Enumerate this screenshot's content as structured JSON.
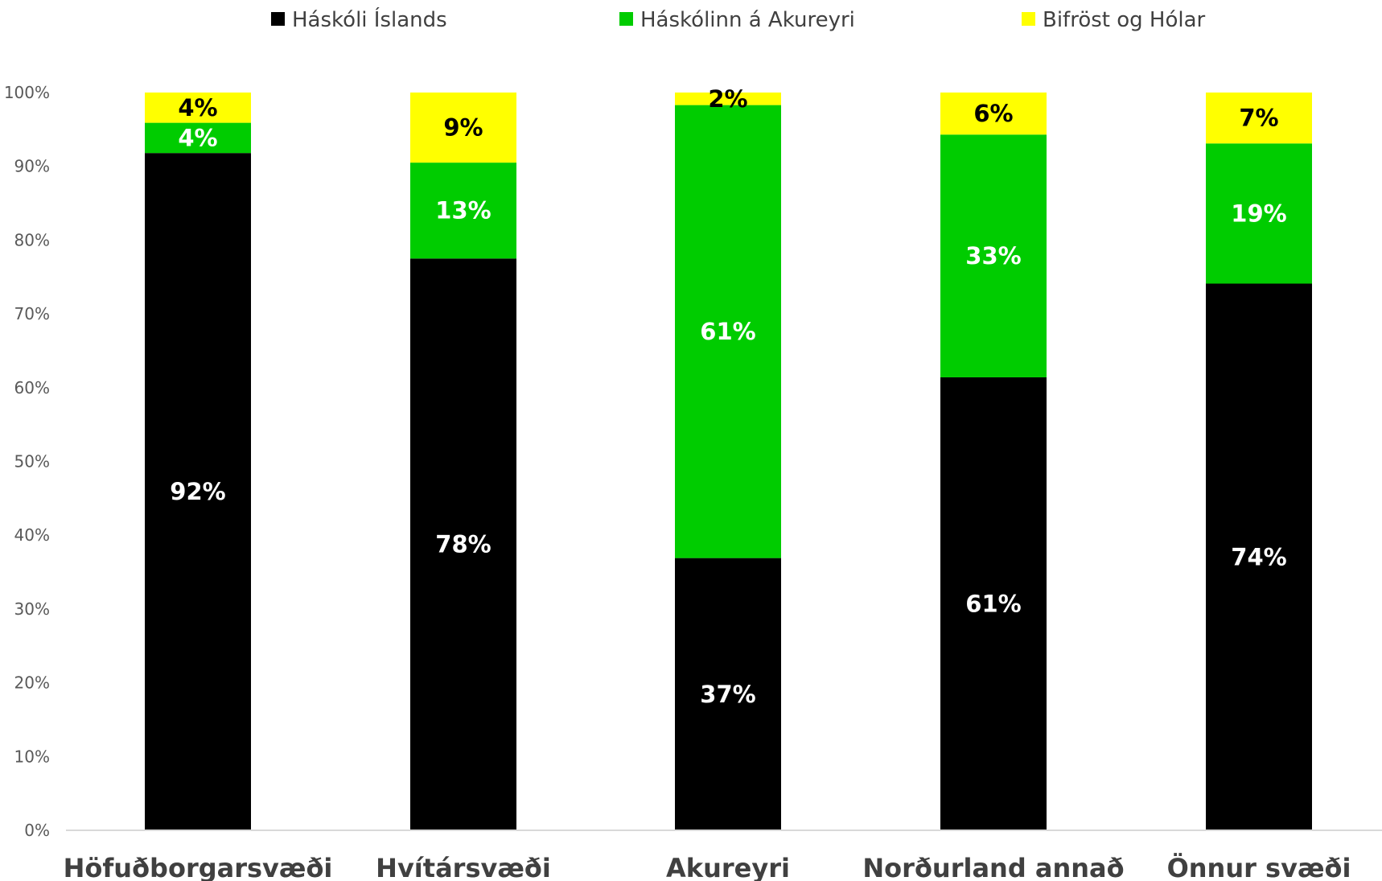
{
  "chart_data": {
    "type": "bar",
    "stacked": true,
    "normalized": true,
    "title": "",
    "xlabel": "",
    "ylabel": "",
    "ylim": [
      0,
      100
    ],
    "y_ticks": [
      "0%",
      "10%",
      "20%",
      "30%",
      "40%",
      "50%",
      "60%",
      "70%",
      "80%",
      "90%",
      "100%"
    ],
    "legend_position": "top",
    "grid": false,
    "categories": [
      "Höfuðborgarsvæði",
      "Hvítársvæði",
      "Akureyri",
      "Norðurland annað",
      "Önnur svæði"
    ],
    "series": [
      {
        "name": "Háskóli Íslands",
        "color": "#000000",
        "label_color": "#ffffff",
        "values": [
          91.8,
          77.5,
          36.9,
          61.4,
          74.1
        ],
        "labels": [
          "92%",
          "78%",
          "37%",
          "61%",
          "74%"
        ]
      },
      {
        "name": "Háskólinn á Akureyri",
        "color": "#00cc00",
        "label_color": "#ffffff",
        "values": [
          4.1,
          13.0,
          61.4,
          32.9,
          19.0
        ],
        "labels": [
          "4%",
          "13%",
          "61%",
          "33%",
          "19%"
        ]
      },
      {
        "name": "Bifröst og Hólar",
        "color": "#ffff00",
        "label_color": "#000000",
        "values": [
          4.1,
          9.5,
          1.7,
          5.7,
          6.9
        ],
        "labels": [
          "4%",
          "9%",
          "2%",
          "6%",
          "7%"
        ]
      }
    ]
  }
}
